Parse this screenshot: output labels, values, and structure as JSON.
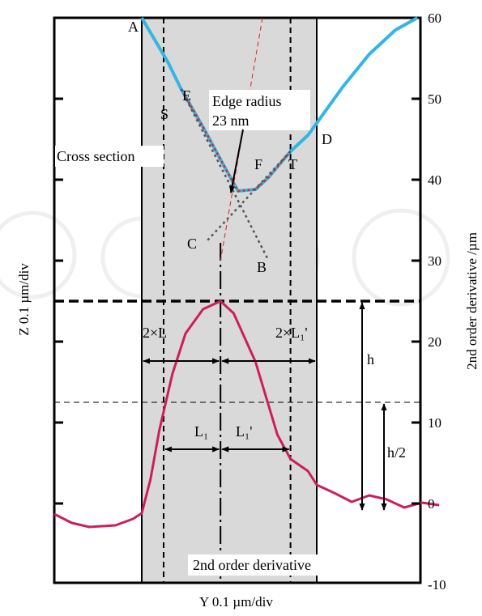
{
  "chart_data": {
    "type": "line",
    "xlabel": "Y 0.1 µm/div",
    "ylabel_left": "Z 0.1 µm/div",
    "ylabel_right": "2nd order derivative /µm",
    "y_right": {
      "min": -10,
      "max": 60,
      "ticks": [
        -10,
        0,
        10,
        20,
        30,
        40,
        50,
        60
      ]
    },
    "grid": false,
    "shaded_band": {
      "x_from": 0,
      "x_to": 2
    },
    "series": [
      {
        "name": "Cross section",
        "color": "#33b5e5",
        "points": [
          [
            0.0,
            60
          ],
          [
            0.3,
            54.5
          ],
          [
            0.45,
            51.2
          ],
          [
            0.7,
            46.5
          ],
          [
            0.95,
            41.5
          ],
          [
            1.1,
            38.6
          ],
          [
            1.3,
            38.8
          ],
          [
            1.45,
            40.3
          ],
          [
            1.7,
            43.5
          ],
          [
            1.9,
            45.5
          ],
          [
            2.0,
            47.0
          ],
          [
            2.3,
            51.5
          ],
          [
            2.6,
            55.5
          ],
          [
            2.9,
            58.5
          ],
          [
            3.15,
            60
          ]
        ]
      },
      {
        "name": "2nd order derivative",
        "color": "#cc1f5a",
        "points": [
          [
            -1.0,
            -1.3
          ],
          [
            -0.8,
            -2.4
          ],
          [
            -0.6,
            -2.9
          ],
          [
            -0.3,
            -2.7
          ],
          [
            -0.1,
            -1.9
          ],
          [
            0.0,
            -1.2
          ],
          [
            0.1,
            3.0
          ],
          [
            0.2,
            9.0
          ],
          [
            0.35,
            16.0
          ],
          [
            0.5,
            21.0
          ],
          [
            0.7,
            24.0
          ],
          [
            0.9,
            25.0
          ],
          [
            1.05,
            23.5
          ],
          [
            1.3,
            17.5
          ],
          [
            1.55,
            8.5
          ],
          [
            1.7,
            5.5
          ],
          [
            1.9,
            4.0
          ],
          [
            2.0,
            2.3
          ],
          [
            2.2,
            1.3
          ],
          [
            2.4,
            0.2
          ],
          [
            2.6,
            1.0
          ],
          [
            2.8,
            0.5
          ],
          [
            3.0,
            -0.5
          ],
          [
            3.2,
            0.1
          ],
          [
            3.4,
            -0.2
          ]
        ]
      }
    ],
    "fit_lines": [
      {
        "label_from": "S",
        "label_to": "B",
        "from": [
          0.45,
          51.2
        ],
        "to": [
          1.45,
          30.0
        ]
      },
      {
        "label_from": "T",
        "label_to": "C",
        "from": [
          1.7,
          43.5
        ],
        "to": [
          0.75,
          32.5
        ]
      }
    ],
    "reference_lines": {
      "dashed_vertical_x": [
        0.25,
        1.7
      ],
      "center_x": 0.9,
      "dashed_horizontal_y": [
        25.0,
        12.5
      ]
    },
    "annotations": {
      "A": "A",
      "B": "B",
      "C": "C",
      "D": "D",
      "E": "E",
      "F": "F",
      "S": "S",
      "T": "T",
      "edge_radius_line1": "Edge radius",
      "edge_radius_line2": "23 nm",
      "cross_section": "Cross section",
      "second_derivative": "2nd order derivative",
      "two_L": "2×L",
      "two_L1p": "2×L₁'",
      "L1": "L₁",
      "L1p": "L₁'",
      "h": "h",
      "h_half": "h/2"
    }
  },
  "watermark": "eco"
}
